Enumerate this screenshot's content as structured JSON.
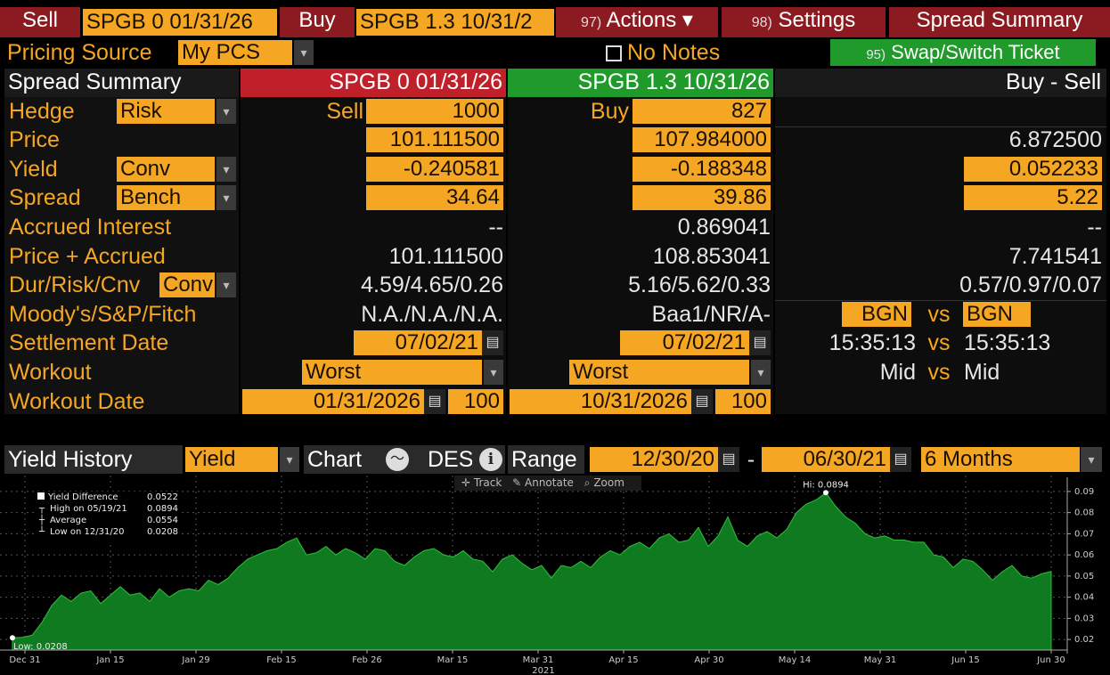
{
  "top": {
    "sell_label": "Sell",
    "sell_security": "SPGB 0 01/31/26",
    "buy_label": "Buy",
    "buy_security": "SPGB 1.3 10/31/2",
    "actions_num": "97)",
    "actions_label": "Actions ▾",
    "settings_num": "98)",
    "settings_label": "Settings",
    "spread_summary_tab": "Spread Summary"
  },
  "row2": {
    "pricing_source_label": "Pricing Source",
    "pricing_source_value": "My PCS",
    "notes_label": "No Notes",
    "swap_num": "95)",
    "swap_label": "Swap/Switch Ticket"
  },
  "table": {
    "header_label": "Spread Summary",
    "sell_header": "SPGB 0 01/31/26",
    "buy_header": "SPGB 1.3 10/31/26",
    "diff_header": "Buy - Sell",
    "hedge_label": "Hedge",
    "hedge_value": "Risk",
    "sell_side": "Sell",
    "sell_qty": "1000",
    "buy_side": "Buy",
    "buy_qty": "827",
    "price_label": "Price",
    "sell_price": "101.111500",
    "buy_price": "107.984000",
    "diff_price": "6.872500",
    "yield_label": "Yield",
    "yield_type": "Conv",
    "sell_yield": "-0.240581",
    "buy_yield": "-0.188348",
    "diff_yield": "0.052233",
    "spread_label": "Spread",
    "spread_type": "Bench",
    "sell_spread": "34.64",
    "buy_spread": "39.86",
    "diff_spread": "5.22",
    "accrued_label": "Accrued Interest",
    "sell_accrued": "--",
    "buy_accrued": "0.869041",
    "diff_accrued": "--",
    "pa_label": "Price + Accrued",
    "sell_pa": "101.111500",
    "buy_pa": "108.853041",
    "diff_pa": "7.741541",
    "dur_label": "Dur/Risk/Cnv",
    "dur_type": "Conv",
    "sell_dur": "4.59/4.65/0.26",
    "buy_dur": "5.16/5.62/0.33",
    "diff_dur": "0.57/0.97/0.07",
    "rating_label": "Moody's/S&P/Fitch",
    "sell_rating": "N.A./N.A./N.A.",
    "buy_rating": "Baa1/NR/A-",
    "src_left": "BGN",
    "vs1": "vs",
    "src_right": "BGN",
    "settle_label": "Settlement Date",
    "sell_settle": "07/02/21",
    "buy_settle": "07/02/21",
    "time_left": "15:35:13",
    "vs2": "vs",
    "time_right": "15:35:13",
    "workout_label": "Workout",
    "sell_workout": "Worst",
    "buy_workout": "Worst",
    "mid_left": "Mid",
    "vs3": "vs",
    "mid_right": "Mid",
    "wdate_label": "Workout Date",
    "sell_wdate": "01/31/2026",
    "sell_wprice": "100",
    "buy_wdate": "10/31/2026",
    "buy_wprice": "100"
  },
  "history": {
    "title": "Yield History",
    "type_value": "Yield",
    "chart_label": "Chart",
    "des_label": "DES",
    "range_label": "Range",
    "start_date": "12/30/20",
    "dash": "-",
    "end_date": "06/30/21",
    "period": "6 Months",
    "tools": [
      "Track",
      "Annotate",
      "Zoom"
    ]
  },
  "legend": {
    "series": "Yield Difference",
    "series_val": "0.0522",
    "high": "High on 05/19/21",
    "high_val": "0.0894",
    "avg": "Average",
    "avg_val": "0.0554",
    "low": "Low on 12/31/20",
    "low_val": "0.0208"
  },
  "chart_data": {
    "type": "area",
    "ylim": [
      0.015,
      0.095
    ],
    "yticks": [
      "0.09",
      "0.08",
      "0.07",
      "0.06",
      "0.05",
      "0.04",
      "0.03",
      "0.02"
    ],
    "xticks": [
      "Dec 31",
      "Jan 15",
      "Jan 29",
      "Feb 15",
      "Feb 26",
      "Mar 15",
      "Mar 31",
      "Apr 15",
      "Apr 30",
      "May 14",
      "May 31",
      "Jun 15",
      "Jun 30"
    ],
    "year_label": "2021",
    "hi_label": "Hi: 0.0894",
    "low_label": "Low: 0.0208",
    "values": [
      0.0208,
      0.021,
      0.022,
      0.028,
      0.036,
      0.041,
      0.038,
      0.042,
      0.043,
      0.037,
      0.041,
      0.045,
      0.041,
      0.042,
      0.038,
      0.044,
      0.04,
      0.043,
      0.044,
      0.043,
      0.048,
      0.046,
      0.049,
      0.054,
      0.058,
      0.06,
      0.062,
      0.063,
      0.066,
      0.068,
      0.06,
      0.061,
      0.064,
      0.06,
      0.063,
      0.061,
      0.058,
      0.063,
      0.062,
      0.057,
      0.055,
      0.059,
      0.062,
      0.063,
      0.06,
      0.059,
      0.062,
      0.058,
      0.057,
      0.052,
      0.058,
      0.06,
      0.056,
      0.053,
      0.055,
      0.049,
      0.055,
      0.054,
      0.057,
      0.054,
      0.059,
      0.062,
      0.06,
      0.064,
      0.066,
      0.063,
      0.068,
      0.07,
      0.066,
      0.067,
      0.073,
      0.064,
      0.069,
      0.078,
      0.067,
      0.064,
      0.069,
      0.071,
      0.068,
      0.072,
      0.08,
      0.084,
      0.086,
      0.0894,
      0.083,
      0.078,
      0.075,
      0.07,
      0.068,
      0.069,
      0.067,
      0.067,
      0.066,
      0.066,
      0.06,
      0.059,
      0.054,
      0.058,
      0.057,
      0.053,
      0.048,
      0.052,
      0.055,
      0.05,
      0.049,
      0.051,
      0.0522
    ]
  }
}
